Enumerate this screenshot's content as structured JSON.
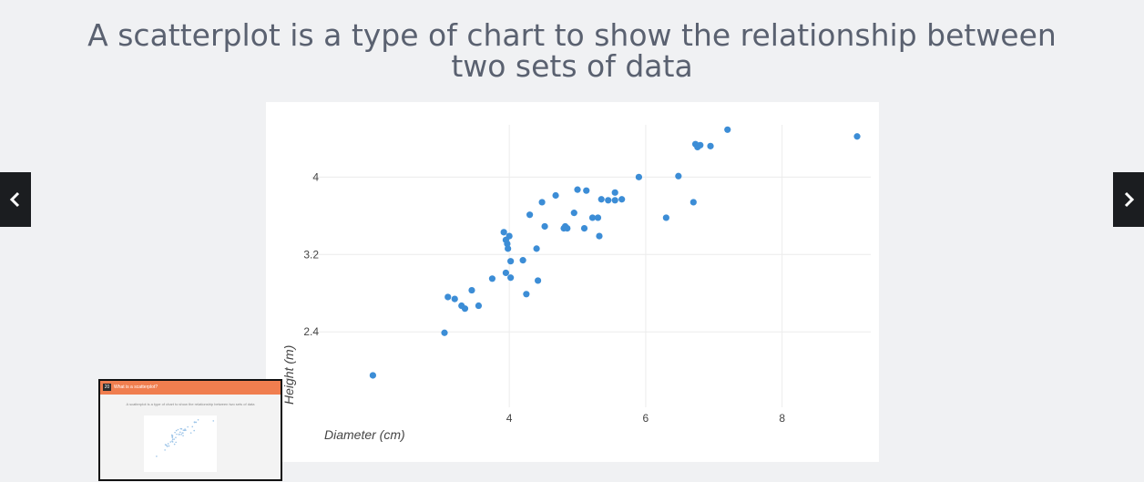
{
  "slide": {
    "title_line1": "A scatterplot is a type of chart to show the relationship between",
    "title_line2": "two sets of data"
  },
  "nav": {
    "prev_icon": "chevron-left-icon",
    "next_icon": "chevron-right-icon"
  },
  "thumbnail": {
    "number": "20",
    "header": "What is a scatterplot?",
    "text": "A scatterplot is a type of chart to show the relationship between two sets of data"
  },
  "colors": {
    "point": "#3c8dd6",
    "grid": "#ececec",
    "tick_text": "#444444",
    "header_accent": "#f07e4f"
  },
  "chart_data": {
    "type": "scatter",
    "title": "",
    "xlabel": "Diameter (cm)",
    "ylabel": "Height (m)",
    "xlim": [
      1.1,
      9.3
    ],
    "ylim": [
      1.62,
      4.54
    ],
    "x_ticks": [
      4,
      6,
      8
    ],
    "y_ticks": [
      2.4,
      3.2,
      4
    ],
    "grid": true,
    "series": [
      {
        "points": [
          [
            2.0,
            1.95
          ],
          [
            3.05,
            2.39
          ],
          [
            3.1,
            2.76
          ],
          [
            3.2,
            2.74
          ],
          [
            3.3,
            2.67
          ],
          [
            3.35,
            2.64
          ],
          [
            3.45,
            2.83
          ],
          [
            3.55,
            2.67
          ],
          [
            3.75,
            2.95
          ],
          [
            3.95,
            3.01
          ],
          [
            3.92,
            3.43
          ],
          [
            3.95,
            3.35
          ],
          [
            3.97,
            3.31
          ],
          [
            3.98,
            3.26
          ],
          [
            4.0,
            3.39
          ],
          [
            4.02,
            3.13
          ],
          [
            4.02,
            2.96
          ],
          [
            4.2,
            3.14
          ],
          [
            4.25,
            2.79
          ],
          [
            4.3,
            3.61
          ],
          [
            4.4,
            3.26
          ],
          [
            4.42,
            2.93
          ],
          [
            4.48,
            3.74
          ],
          [
            4.52,
            3.49
          ],
          [
            4.68,
            3.81
          ],
          [
            4.8,
            3.47
          ],
          [
            4.82,
            3.49
          ],
          [
            4.85,
            3.47
          ],
          [
            4.95,
            3.63
          ],
          [
            5.0,
            3.87
          ],
          [
            5.1,
            3.47
          ],
          [
            5.13,
            3.86
          ],
          [
            5.22,
            3.58
          ],
          [
            5.3,
            3.58
          ],
          [
            5.32,
            3.39
          ],
          [
            5.35,
            3.77
          ],
          [
            5.45,
            3.76
          ],
          [
            5.55,
            3.76
          ],
          [
            5.55,
            3.84
          ],
          [
            5.65,
            3.77
          ],
          [
            5.9,
            4.0
          ],
          [
            6.3,
            3.58
          ],
          [
            6.48,
            4.01
          ],
          [
            6.7,
            3.74
          ],
          [
            6.73,
            4.34
          ],
          [
            6.76,
            4.31
          ],
          [
            6.8,
            4.33
          ],
          [
            6.95,
            4.32
          ],
          [
            7.2,
            4.49
          ],
          [
            9.1,
            4.42
          ]
        ]
      }
    ]
  }
}
